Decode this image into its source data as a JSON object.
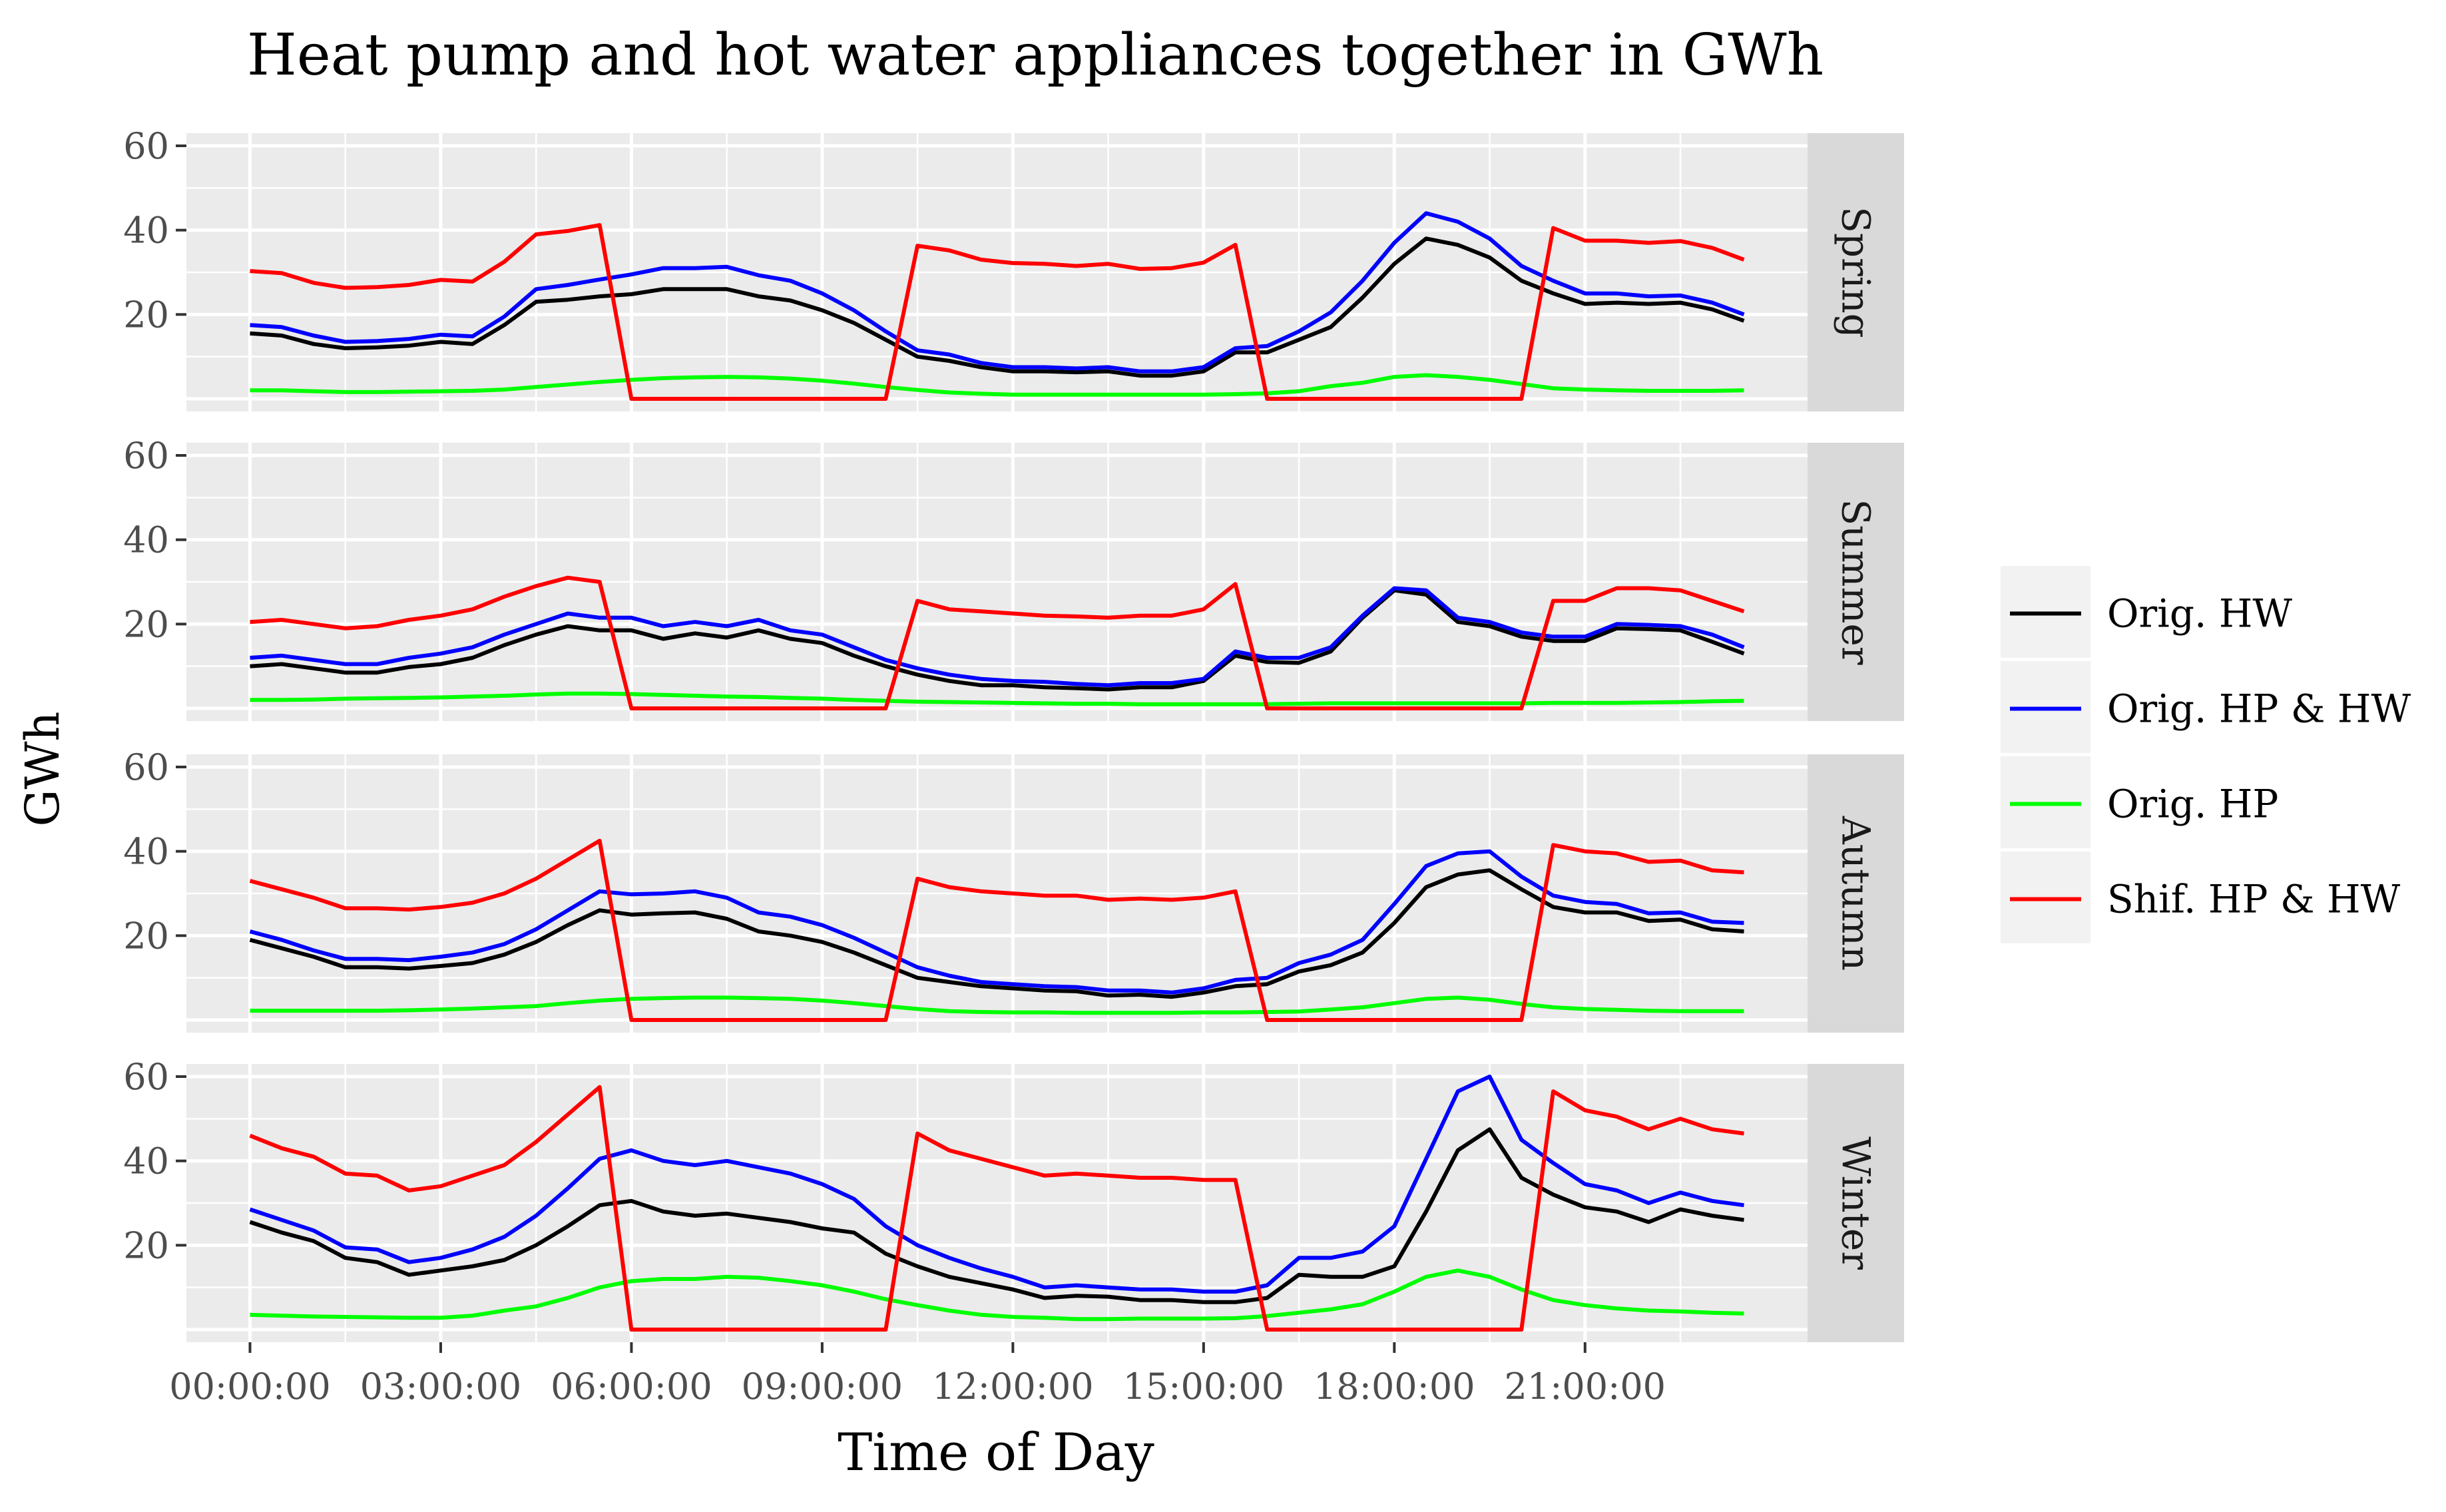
{
  "chart_data": {
    "type": "line",
    "title": "Heat pump and hot water appliances together in GWh",
    "xlabel": "Time of Day",
    "ylabel": "GWh",
    "ylim": [
      -3,
      63
    ],
    "y_ticks": [
      20,
      40,
      60
    ],
    "x_tick_values": [
      0,
      3,
      6,
      9,
      12,
      15,
      18,
      21
    ],
    "x_tick_labels": [
      "00:00:00",
      "03:00:00",
      "06:00:00",
      "09:00:00",
      "12:00:00",
      "15:00:00",
      "18:00:00",
      "21:00:00"
    ],
    "x_hours": [
      0.0,
      0.5,
      1.0,
      1.5,
      2.0,
      2.5,
      3.0,
      3.5,
      4.0,
      4.5,
      5.0,
      5.5,
      6.0,
      6.5,
      7.0,
      7.5,
      8.0,
      8.5,
      9.0,
      9.5,
      10.0,
      10.5,
      11.0,
      11.5,
      12.0,
      12.5,
      13.0,
      13.5,
      14.0,
      14.5,
      15.0,
      15.5,
      16.0,
      16.5,
      17.0,
      17.5,
      18.0,
      18.5,
      19.0,
      19.5,
      20.0,
      20.5,
      21.0,
      21.5,
      22.0,
      22.5,
      23.0,
      23.5
    ],
    "grid": true,
    "legend_position": "right",
    "series_meta": [
      {
        "name": "Orig. HW",
        "color": "#000000"
      },
      {
        "name": "Orig. HP & HW",
        "color": "#0000ff"
      },
      {
        "name": "Orig. HP",
        "color": "#00ff00"
      },
      {
        "name": "Shif. HP & HW",
        "color": "#ff0000"
      }
    ],
    "facets": [
      {
        "label": "Spring",
        "series": {
          "Orig. HW": [
            15.5,
            15,
            13,
            12,
            12.2,
            12.6,
            13.5,
            13,
            17.5,
            23,
            23.5,
            24.3,
            24.8,
            26,
            26,
            26,
            24.3,
            23.3,
            21,
            18,
            14,
            10,
            9,
            7.5,
            6.5,
            6.5,
            6.3,
            6.5,
            5.5,
            5.5,
            6.5,
            11,
            11,
            14,
            17,
            24,
            32,
            38,
            36.5,
            33.5,
            28,
            25,
            22.5,
            22.8,
            22.5,
            22.8,
            21.2,
            18.5
          ],
          "Orig. HP & HW": [
            17.5,
            17,
            15,
            13.5,
            13.7,
            14.2,
            15.2,
            14.8,
            19.5,
            26,
            27,
            28.3,
            29.5,
            31,
            31,
            31.3,
            29.3,
            28,
            25,
            21,
            16,
            11.5,
            10.5,
            8.5,
            7.5,
            7.5,
            7.2,
            7.5,
            6.5,
            6.5,
            7.5,
            12,
            12.5,
            16,
            20.5,
            28,
            37,
            44,
            42,
            38,
            31.5,
            28,
            25,
            25,
            24.3,
            24.5,
            22.8,
            20
          ],
          "Orig. HP": [
            2,
            2,
            1.8,
            1.6,
            1.6,
            1.7,
            1.8,
            1.9,
            2.2,
            2.8,
            3.4,
            4,
            4.5,
            4.9,
            5.1,
            5.2,
            5.1,
            4.8,
            4.3,
            3.6,
            2.8,
            2.1,
            1.5,
            1.2,
            1,
            1,
            1,
            1,
            1,
            1,
            1,
            1.1,
            1.3,
            1.8,
            3,
            3.8,
            5.2,
            5.6,
            5.2,
            4.5,
            3.5,
            2.5,
            2.2,
            2,
            1.9,
            1.9,
            1.9,
            2
          ],
          "Shif. HP & HW": [
            30.3,
            29.8,
            27.5,
            26.3,
            26.5,
            27,
            28.2,
            27.8,
            32.5,
            39,
            39.8,
            41.2,
            0,
            0,
            0,
            0,
            0,
            0,
            0,
            0,
            0,
            36.3,
            35.2,
            33,
            32.2,
            32,
            31.5,
            32,
            30.8,
            31,
            32.3,
            36.5,
            0,
            0,
            0,
            0,
            0,
            0,
            0,
            0,
            0,
            40.5,
            37.5,
            37.5,
            37,
            37.4,
            35.8,
            33
          ]
        }
      },
      {
        "label": "Summer",
        "series": {
          "Orig. HW": [
            10,
            10.5,
            9.5,
            8.5,
            8.5,
            9.8,
            10.5,
            12,
            15,
            17.5,
            19.5,
            18.5,
            18.5,
            16.5,
            17.8,
            16.8,
            18.5,
            16.5,
            15.5,
            12.5,
            10,
            8,
            6.5,
            5.5,
            5.5,
            5,
            4.8,
            4.5,
            5,
            5,
            6.5,
            12.5,
            11,
            10.8,
            13.5,
            21.5,
            28,
            27,
            20.5,
            19.5,
            17,
            16,
            16,
            19,
            18.8,
            18.5,
            15.8,
            13
          ],
          "Orig. HP & HW": [
            12,
            12.5,
            11.5,
            10.5,
            10.5,
            12,
            13,
            14.5,
            17.5,
            20,
            22.5,
            21.5,
            21.5,
            19.5,
            20.5,
            19.5,
            21,
            18.5,
            17.5,
            14.5,
            11.5,
            9.5,
            8,
            7,
            6.5,
            6.3,
            5.8,
            5.5,
            6,
            6,
            7,
            13.5,
            12,
            12,
            14.5,
            22,
            28.5,
            28,
            21.5,
            20.5,
            18,
            17,
            17,
            20,
            19.8,
            19.5,
            17.5,
            14.5
          ],
          "Orig. HP": [
            2,
            2,
            2.1,
            2.3,
            2.4,
            2.5,
            2.6,
            2.8,
            3,
            3.3,
            3.5,
            3.5,
            3.4,
            3.2,
            3,
            2.8,
            2.7,
            2.5,
            2.3,
            2,
            1.8,
            1.6,
            1.5,
            1.4,
            1.3,
            1.2,
            1.1,
            1.1,
            1,
            1,
            1,
            1,
            1,
            1.1,
            1.2,
            1.2,
            1.2,
            1.2,
            1.2,
            1.2,
            1.2,
            1.3,
            1.3,
            1.3,
            1.4,
            1.5,
            1.7,
            1.8
          ],
          "Shif. HP & HW": [
            20.5,
            21,
            20,
            19,
            19.5,
            21,
            22,
            23.5,
            26.5,
            29,
            31,
            30,
            0,
            0,
            0,
            0,
            0,
            0,
            0,
            0,
            0,
            25.5,
            23.5,
            23,
            22.5,
            22,
            21.8,
            21.5,
            22,
            22,
            23.5,
            29.5,
            0,
            0,
            0,
            0,
            0,
            0,
            0,
            0,
            0,
            25.5,
            25.5,
            28.5,
            28.5,
            28,
            25.5,
            23
          ]
        }
      },
      {
        "label": "Autumn",
        "series": {
          "Orig. HW": [
            19,
            17,
            15,
            12.5,
            12.5,
            12.2,
            12.8,
            13.5,
            15.5,
            18.5,
            22.5,
            26,
            25,
            25.3,
            25.5,
            24,
            21,
            20,
            18.5,
            16,
            13,
            10,
            9,
            8,
            7.5,
            7,
            6.8,
            5.8,
            6,
            5.5,
            6.5,
            8,
            8.5,
            11.5,
            13,
            16,
            23,
            31.5,
            34.5,
            35.5,
            31,
            26.8,
            25.5,
            25.5,
            23.5,
            23.8,
            21.5,
            21
          ],
          "Orig. HP & HW": [
            21,
            19,
            16.5,
            14.5,
            14.5,
            14.2,
            15,
            16,
            18,
            21.5,
            26,
            30.5,
            29.8,
            30,
            30.5,
            29,
            25.5,
            24.5,
            22.5,
            19.5,
            16,
            12.5,
            10.5,
            9,
            8.5,
            8,
            7.8,
            7,
            7,
            6.5,
            7.5,
            9.5,
            10,
            13.5,
            15.5,
            19,
            27.5,
            36.5,
            39.5,
            40,
            34,
            29.5,
            28,
            27.5,
            25.3,
            25.5,
            23.3,
            23
          ],
          "Orig. HP": [
            2.2,
            2.2,
            2.2,
            2.2,
            2.2,
            2.3,
            2.5,
            2.7,
            3,
            3.3,
            4,
            4.6,
            5,
            5.2,
            5.3,
            5.3,
            5.2,
            5,
            4.6,
            4,
            3.3,
            2.6,
            2.1,
            1.9,
            1.8,
            1.8,
            1.7,
            1.7,
            1.7,
            1.7,
            1.8,
            1.8,
            1.9,
            2,
            2.5,
            3,
            4,
            5,
            5.3,
            4.8,
            3.8,
            3,
            2.6,
            2.4,
            2.2,
            2.1,
            2.1,
            2.1
          ],
          "Shif. HP & HW": [
            33,
            31,
            29,
            26.5,
            26.5,
            26.2,
            26.8,
            27.8,
            30,
            33.5,
            38,
            42.5,
            0,
            0,
            0,
            0,
            0,
            0,
            0,
            0,
            0,
            33.5,
            31.5,
            30.5,
            30,
            29.5,
            29.5,
            28.5,
            28.8,
            28.5,
            29,
            30.5,
            0,
            0,
            0,
            0,
            0,
            0,
            0,
            0,
            0,
            41.5,
            40,
            39.5,
            37.5,
            37.8,
            35.5,
            35
          ]
        }
      },
      {
        "label": "Winter",
        "series": {
          "Orig. HW": [
            25.5,
            23,
            21,
            17,
            16,
            13,
            14,
            15,
            16.5,
            20,
            24.5,
            29.5,
            30.5,
            28,
            27,
            27.5,
            26.5,
            25.5,
            24,
            23,
            18,
            15,
            12.5,
            11,
            9.5,
            7.5,
            8,
            7.8,
            7,
            7,
            6.5,
            6.5,
            7.5,
            13,
            12.5,
            12.5,
            15,
            28,
            42.5,
            47.5,
            36,
            32,
            29,
            28,
            25.5,
            28.5,
            27,
            26
          ],
          "Orig. HP & HW": [
            28.5,
            26,
            23.5,
            19.5,
            19,
            16,
            17,
            19,
            22,
            27,
            33.5,
            40.5,
            42.5,
            40,
            39,
            40,
            38.5,
            37,
            34.5,
            31,
            24.5,
            20,
            17,
            14.5,
            12.5,
            10,
            10.5,
            10,
            9.5,
            9.5,
            9,
            9,
            10.5,
            17,
            17,
            18.5,
            24.5,
            40.5,
            56.5,
            60,
            45,
            39.5,
            34.5,
            33,
            30,
            32.5,
            30.5,
            29.5
          ],
          "Orig. HP": [
            3.5,
            3.3,
            3.1,
            3,
            2.9,
            2.8,
            2.8,
            3.3,
            4.5,
            5.5,
            7.5,
            10,
            11.5,
            12,
            12,
            12.5,
            12.3,
            11.5,
            10.5,
            9,
            7.2,
            5.8,
            4.5,
            3.5,
            3,
            2.8,
            2.5,
            2.5,
            2.6,
            2.6,
            2.6,
            2.7,
            3.2,
            4,
            4.8,
            6,
            9,
            12.5,
            14,
            12.5,
            9.5,
            7,
            5.8,
            5,
            4.5,
            4.3,
            4,
            3.8
          ],
          "Shif. HP & HW": [
            46,
            43,
            41,
            37,
            36.5,
            33,
            34,
            36.5,
            39,
            44.5,
            51,
            57.5,
            0,
            0,
            0,
            0,
            0,
            0,
            0,
            0,
            0,
            46.5,
            42.5,
            40.5,
            38.5,
            36.5,
            37,
            36.5,
            36,
            36,
            35.5,
            35.5,
            0,
            0,
            0,
            0,
            0,
            0,
            0,
            0,
            0,
            56.5,
            52,
            50.5,
            47.5,
            50,
            47.5,
            46.5
          ]
        }
      }
    ]
  },
  "colors": {
    "panel_bg": "#ebebeb",
    "strip_bg": "#d9d9d9",
    "grid": "#ffffff"
  }
}
